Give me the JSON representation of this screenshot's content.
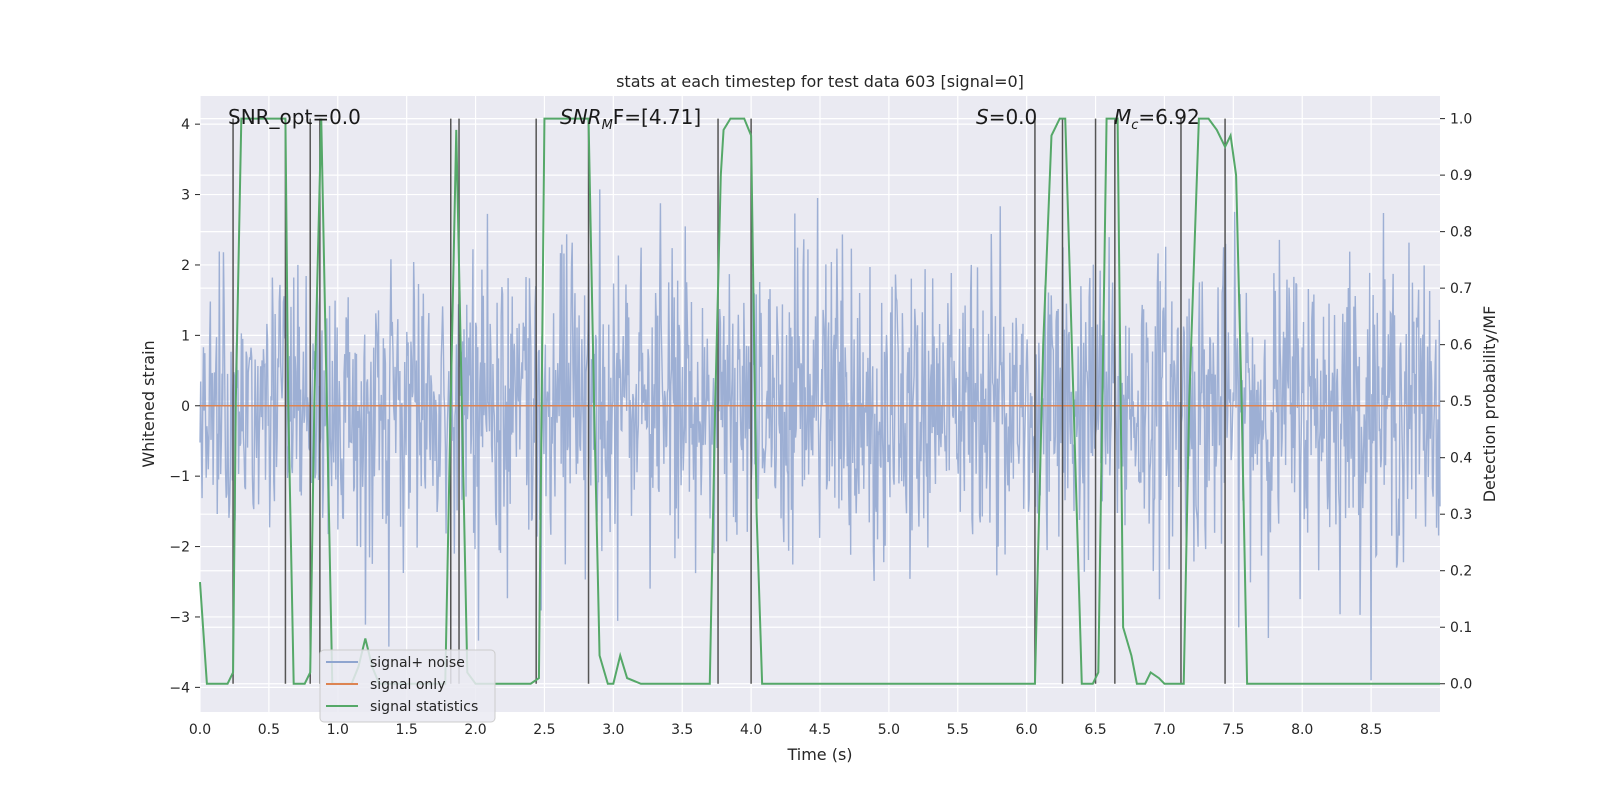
{
  "chart_data": {
    "type": "line",
    "title": "stats at each timestep for test data 603 [signal=0]",
    "xlabel": "Time (s)",
    "ylabel": "Whitened strain",
    "ylabel_right": "Detection probability/MF",
    "xlim": [
      0.0,
      9.0
    ],
    "ylim": [
      -4.35,
      4.4
    ],
    "ylim_right": [
      -0.05,
      1.04
    ],
    "xticks": [
      0.0,
      0.5,
      1.0,
      1.5,
      2.0,
      2.5,
      3.0,
      3.5,
      4.0,
      4.5,
      5.0,
      5.5,
      6.0,
      6.5,
      7.0,
      7.5,
      8.0,
      8.5
    ],
    "xtick_labels": [
      "0.0",
      "0.5",
      "1.0",
      "1.5",
      "2.0",
      "2.5",
      "3.0",
      "3.5",
      "4.0",
      "4.5",
      "5.0",
      "5.5",
      "6.0",
      "6.5",
      "7.0",
      "7.5",
      "8.0",
      "8.5"
    ],
    "yticks": [
      4,
      3,
      2,
      1,
      0,
      -1,
      -2,
      -3,
      -4
    ],
    "ytick_labels": [
      "4",
      "3",
      "2",
      "1",
      "0",
      "−1",
      "−2",
      "−3",
      "−4"
    ],
    "yticks_right": [
      1.0,
      0.9,
      0.8,
      0.7,
      0.6,
      0.5,
      0.4,
      0.3,
      0.2,
      0.1,
      0.0
    ],
    "ytick_labels_right": [
      "1.0",
      "0.9",
      "0.8",
      "0.7",
      "0.6",
      "0.5",
      "0.4",
      "0.3",
      "0.2",
      "0.1",
      "0.0"
    ],
    "grid": true,
    "legend_position": "lower-left",
    "annotations": {
      "snr_opt": "SNR_opt=0.0",
      "snr_mf_var": "SNR",
      "snr_mf_sub": "M",
      "snr_mf_rest": "F=[4.71]",
      "s_var": "S",
      "s_rest": "=0.0",
      "mc_var": "M",
      "mc_sub": "c",
      "mc_rest": "=6.92"
    },
    "series": [
      {
        "name": "signal+ noise",
        "color": "#8fa5cf",
        "kind": "noise-trace",
        "n_points": 1800,
        "typical_amplitude": 1.6,
        "peak_amplitude": 3.9
      },
      {
        "name": "signal only",
        "color": "#dd8452",
        "kind": "flat",
        "value": 0.0
      },
      {
        "name": "signal statistics",
        "color": "#55a868",
        "kind": "probability",
        "axis": "right",
        "x": [
          0.0,
          0.05,
          0.1,
          0.2,
          0.24,
          0.26,
          0.3,
          0.4,
          0.5,
          0.6,
          0.62,
          0.64,
          0.68,
          0.72,
          0.76,
          0.8,
          0.83,
          0.88,
          0.92,
          0.96,
          1.0,
          1.05,
          1.1,
          1.15,
          1.2,
          1.25,
          1.3,
          1.4,
          1.5,
          1.6,
          1.7,
          1.78,
          1.82,
          1.86,
          1.9,
          1.94,
          2.0,
          2.1,
          2.2,
          2.3,
          2.4,
          2.46,
          2.5,
          2.6,
          2.7,
          2.8,
          2.82,
          2.86,
          2.9,
          2.96,
          3.0,
          3.05,
          3.1,
          3.2,
          3.3,
          3.4,
          3.5,
          3.6,
          3.7,
          3.74,
          3.78,
          3.8,
          3.85,
          3.9,
          3.95,
          4.0,
          4.04,
          4.08,
          4.2,
          4.4,
          4.6,
          4.8,
          5.0,
          5.2,
          5.4,
          5.6,
          5.8,
          6.0,
          6.06,
          6.12,
          6.18,
          6.24,
          6.28,
          6.34,
          6.4,
          6.48,
          6.52,
          6.58,
          6.62,
          6.66,
          6.7,
          6.76,
          6.8,
          6.86,
          6.9,
          6.96,
          7.0,
          7.06,
          7.1,
          7.14,
          7.18,
          7.25,
          7.32,
          7.38,
          7.44,
          7.48,
          7.52,
          7.56,
          7.6,
          7.7,
          7.8,
          8.0,
          8.2,
          8.4,
          8.6,
          8.8,
          9.0
        ],
        "values": [
          0.18,
          0.0,
          0.0,
          0.0,
          0.02,
          0.5,
          1.0,
          1.0,
          1.0,
          1.0,
          1.0,
          0.5,
          0.0,
          0.0,
          0.0,
          0.02,
          0.5,
          1.0,
          0.5,
          0.0,
          0.0,
          0.0,
          0.0,
          0.03,
          0.08,
          0.03,
          0.0,
          0.0,
          0.0,
          0.0,
          0.0,
          0.0,
          0.5,
          0.98,
          0.5,
          0.02,
          0.0,
          0.0,
          0.0,
          0.0,
          0.0,
          0.01,
          1.0,
          1.0,
          1.0,
          1.0,
          1.0,
          0.5,
          0.05,
          0.0,
          0.0,
          0.05,
          0.01,
          0.0,
          0.0,
          0.0,
          0.0,
          0.0,
          0.0,
          0.5,
          0.9,
          0.98,
          1.0,
          1.0,
          1.0,
          0.97,
          0.3,
          0.0,
          0.0,
          0.0,
          0.0,
          0.0,
          0.0,
          0.0,
          0.0,
          0.0,
          0.0,
          0.0,
          0.0,
          0.6,
          0.97,
          1.0,
          1.0,
          0.5,
          0.0,
          0.0,
          0.02,
          1.0,
          1.0,
          1.0,
          0.1,
          0.05,
          0.0,
          0.0,
          0.02,
          0.01,
          0.0,
          0.0,
          0.0,
          0.0,
          0.5,
          1.0,
          1.0,
          0.98,
          0.95,
          0.97,
          0.9,
          0.5,
          0.0,
          0.0,
          0.0,
          0.0,
          0.0,
          0.0,
          0.0,
          0.0,
          0.0
        ]
      }
    ],
    "event_markers_x": [
      0.24,
      0.62,
      0.8,
      0.87,
      1.82,
      1.88,
      2.44,
      2.82,
      3.76,
      4.0,
      6.06,
      6.26,
      6.5,
      6.64,
      7.12,
      7.44
    ],
    "legend": [
      {
        "label": "signal+ noise",
        "color": "#8fa5cf"
      },
      {
        "label": "signal only",
        "color": "#dd8452"
      },
      {
        "label": "signal statistics",
        "color": "#55a868"
      }
    ]
  }
}
